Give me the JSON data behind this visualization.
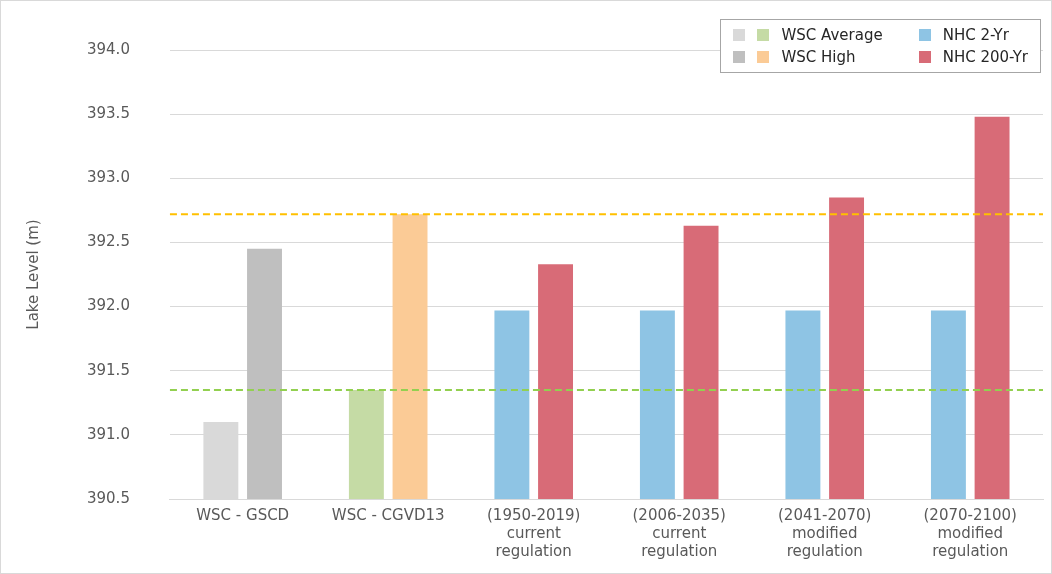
{
  "chart_data": {
    "type": "bar",
    "ylabel": "Lake Level (m)",
    "categories": [
      "WSC - GSCD",
      "WSC - CGVD13",
      "(1950-2019)\ncurrent\nregulation",
      "(2006-2035)\ncurrent\nregulation",
      "(2041-2070)\nmodified\nregulation",
      "(2070-2100)\nmodified\nregulation"
    ],
    "series": [
      {
        "name": "WSC Average",
        "colors": [
          "#d9d9d9",
          "#c5dba5",
          null,
          null,
          null,
          null
        ],
        "values": [
          391.1,
          391.35,
          null,
          null,
          null,
          null
        ]
      },
      {
        "name": "WSC High",
        "colors": [
          "#bfbfbf",
          "#fbcb96",
          null,
          null,
          null,
          null
        ],
        "values": [
          392.45,
          392.72,
          null,
          null,
          null,
          null
        ]
      },
      {
        "name": "NHC 2-Yr",
        "color": "#8ec4e4",
        "values": [
          null,
          null,
          391.97,
          391.97,
          391.97,
          391.97
        ]
      },
      {
        "name": "NHC 200-Yr",
        "color": "#d86b77",
        "values": [
          null,
          null,
          392.33,
          392.63,
          392.85,
          393.48
        ]
      }
    ],
    "ylim": [
      390.5,
      394.0
    ],
    "yticks": [
      {
        "value": 390.5,
        "label": "390.5"
      },
      {
        "value": 391,
        "label": "391.0"
      },
      {
        "value": 391.5,
        "label": "391.5"
      },
      {
        "value": 392,
        "label": "392.0"
      },
      {
        "value": 392.5,
        "label": "392.5"
      },
      {
        "value": 393,
        "label": "393.0"
      },
      {
        "value": 393.5,
        "label": "393.5"
      },
      {
        "value": 394,
        "label": "394.0"
      }
    ],
    "ref_lines": [
      {
        "axis": "y",
        "value": 392.72,
        "color": "#ffc000",
        "line_style": "dashed"
      },
      {
        "axis": "y",
        "value": 391.35,
        "color": "#92d050",
        "line_style": "dashed"
      }
    ],
    "grid": "y",
    "legend": "top right"
  }
}
